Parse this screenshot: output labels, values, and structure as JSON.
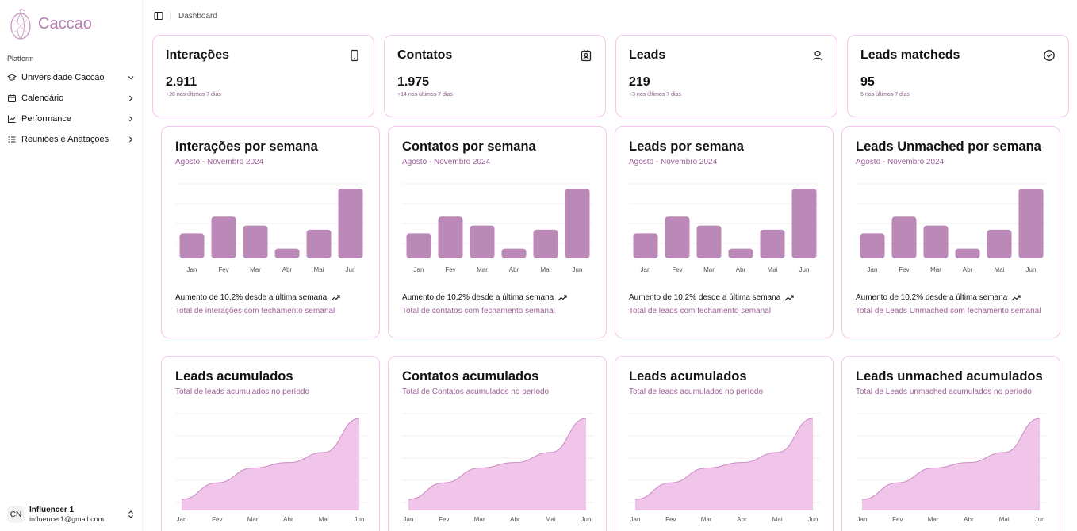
{
  "app": {
    "name": "Caccao"
  },
  "sidebar": {
    "section_label": "Platform",
    "items": [
      {
        "label": "Universidade Caccao",
        "icon": "graduation-cap-icon",
        "chevron": "down"
      },
      {
        "label": "Calendário",
        "icon": "calendar-icon",
        "chevron": "right"
      },
      {
        "label": "Performance",
        "icon": "chart-icon",
        "chevron": "right"
      },
      {
        "label": "Reuniões e Anatações",
        "icon": "list-icon",
        "chevron": "right"
      }
    ],
    "user": {
      "initials": "CN",
      "name": "Influencer 1",
      "email": "influencer1@gmail.com"
    }
  },
  "breadcrumb": {
    "current": "Dashboard"
  },
  "colors": {
    "accent": "#b57eb0",
    "bar": "#bb89b7",
    "area_fill": "#f1c4ea",
    "area_line": "#c98bc2",
    "card_border": "#f3c6ee"
  },
  "stats": [
    {
      "title": "Interações",
      "value": "2.911",
      "sub": "+28 nos últimos 7 dias",
      "icon": "phone-icon"
    },
    {
      "title": "Contatos",
      "value": "1.975",
      "sub": "+14 nos últimos 7 dias",
      "icon": "contact-icon"
    },
    {
      "title": "Leads",
      "value": "219",
      "sub": "+3 nos últimos 7 dias",
      "icon": "user-icon"
    },
    {
      "title": "Leads matcheds",
      "value": "95",
      "sub": "5 nos últimos 7 dias",
      "icon": "check-circle-icon"
    }
  ],
  "bar_cards": [
    {
      "title": "Interações por semana",
      "subtitle": "Agosto - Novembro 2024",
      "trend": "Aumento de 10,2% desde a última semana",
      "footer": "Total de interações com fechamento semanal"
    },
    {
      "title": "Contatos por semana",
      "subtitle": "Agosto - Novembro 2024",
      "trend": "Aumento de 10,2% desde a última semana",
      "footer": "Total de contatos com fechamento semanal"
    },
    {
      "title": "Leads por semana",
      "subtitle": "Agosto - Novembro 2024",
      "trend": "Aumento de 10,2% desde a última semana",
      "footer": "Total de leads com fechamento semanal"
    },
    {
      "title": "Leads Unmached por semana",
      "subtitle": "Agosto - Novembro 2024",
      "trend": "Aumento de 10,2% desde a última semana",
      "footer": "Total de Leads Unmached com fechamento semanal"
    }
  ],
  "area_cards": [
    {
      "title": "Leads acumulados",
      "subtitle": "Total de leads acumulados no período"
    },
    {
      "title": "Contatos acumulados",
      "subtitle": "Total de Contatos acumulados no período"
    },
    {
      "title": "Leads acumulados",
      "subtitle": "Total de leads acumulados no período"
    },
    {
      "title": "Leads unmached acumulados",
      "subtitle": "Total de Leads unmached acumulados no período"
    }
  ],
  "chart_data": [
    {
      "type": "bar",
      "categories": [
        "Jan",
        "Fev",
        "Mar",
        "Abr",
        "Mai",
        "Jun"
      ],
      "values": [
        0.36,
        0.6,
        0.47,
        0.14,
        0.41,
        1.0
      ],
      "grid": true
    },
    {
      "type": "bar",
      "categories": [
        "Jan",
        "Fev",
        "Mar",
        "Abr",
        "Mai",
        "Jun"
      ],
      "values": [
        0.36,
        0.6,
        0.47,
        0.14,
        0.41,
        1.0
      ],
      "grid": true
    },
    {
      "type": "bar",
      "categories": [
        "Jan",
        "Fev",
        "Mar",
        "Abr",
        "Mai",
        "Jun"
      ],
      "values": [
        0.36,
        0.6,
        0.47,
        0.14,
        0.41,
        1.0
      ],
      "grid": true
    },
    {
      "type": "bar",
      "categories": [
        "Jan",
        "Fev",
        "Mar",
        "Abr",
        "Mai",
        "Jun"
      ],
      "values": [
        0.36,
        0.6,
        0.47,
        0.14,
        0.41,
        1.0
      ],
      "grid": true
    },
    {
      "type": "area",
      "categories": [
        "Jan",
        "Fev",
        "Mar",
        "Abr",
        "Mai",
        "Jun"
      ],
      "values": [
        0.12,
        0.3,
        0.46,
        0.52,
        0.63,
        1.0
      ],
      "grid": true
    },
    {
      "type": "area",
      "categories": [
        "Jan",
        "Fev",
        "Mar",
        "Abr",
        "Mai",
        "Jun"
      ],
      "values": [
        0.12,
        0.3,
        0.46,
        0.52,
        0.63,
        1.0
      ],
      "grid": true
    },
    {
      "type": "area",
      "categories": [
        "Jan",
        "Fev",
        "Mar",
        "Abr",
        "Mai",
        "Jun"
      ],
      "values": [
        0.12,
        0.3,
        0.46,
        0.52,
        0.63,
        1.0
      ],
      "grid": true
    },
    {
      "type": "area",
      "categories": [
        "Jan",
        "Fev",
        "Mar",
        "Abr",
        "Mai",
        "Jun"
      ],
      "values": [
        0.12,
        0.3,
        0.46,
        0.52,
        0.63,
        1.0
      ],
      "grid": true
    }
  ]
}
